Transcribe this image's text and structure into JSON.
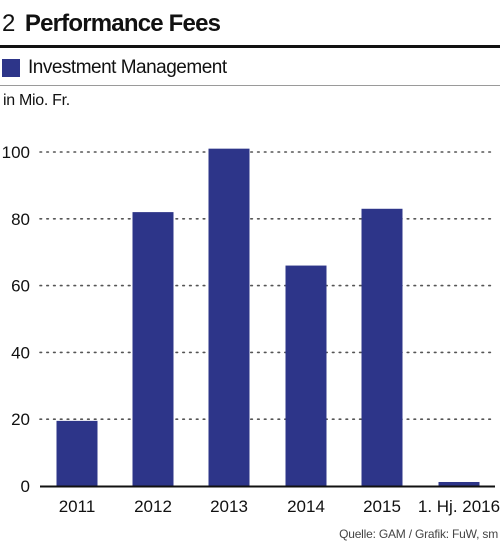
{
  "header": {
    "number": "2",
    "title": "Performance Fees"
  },
  "unit_label": "in Mio. Fr.",
  "source": "Quelle: GAM / Grafik: FuW, sm",
  "colors": {
    "bar": "#2d3589",
    "grid": "#555555",
    "axis": "#111111"
  },
  "chart_data": {
    "type": "bar",
    "categories": [
      "2011",
      "2012",
      "2013",
      "2014",
      "2015",
      "1. Hj. 2016"
    ],
    "series": [
      {
        "name": "Investment Management",
        "values": [
          19.5,
          82,
          101,
          66,
          83,
          1.2
        ]
      }
    ],
    "ylim": [
      0,
      100
    ],
    "yticks": [
      0,
      20,
      40,
      60,
      80,
      100
    ],
    "grid": true,
    "legend_placement": "top-left",
    "ylabel": "in Mio. Fr.",
    "title": "Performance Fees"
  }
}
